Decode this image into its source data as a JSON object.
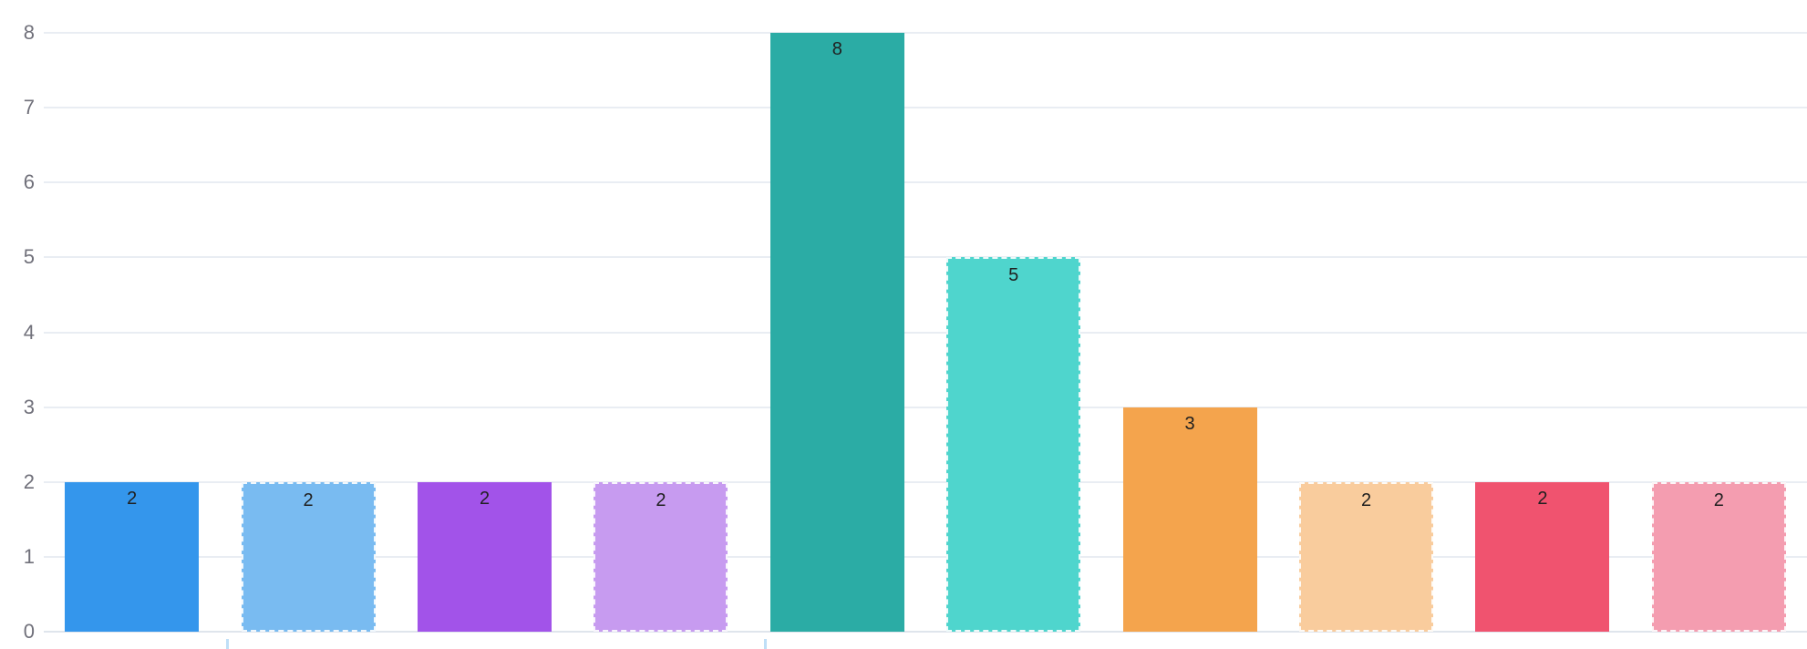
{
  "chart_data": {
    "type": "bar",
    "title": "",
    "xlabel": "",
    "ylabel": "",
    "x_tick_labels_visible": false,
    "values": [
      2,
      2,
      2,
      2,
      8,
      5,
      3,
      2,
      2,
      2
    ],
    "value_labels": [
      "2",
      "2",
      "2",
      "2",
      "8",
      "5",
      "3",
      "2",
      "2",
      "2"
    ],
    "bar_colors": [
      "#3496EC",
      "#79BBF1",
      "#A253E9",
      "#C79BF0",
      "#2BACA5",
      "#4FD5CD",
      "#F4A44D",
      "#F9CC9D",
      "#F0536F",
      "#F49DB0"
    ],
    "bar_border_dashed": [
      false,
      true,
      false,
      true,
      false,
      true,
      false,
      true,
      false,
      true
    ],
    "y_ticks": [
      "0",
      "1",
      "2",
      "3",
      "4",
      "5",
      "6",
      "7",
      "8"
    ],
    "ylim": [
      0,
      8
    ],
    "grid": true,
    "legend_position": "none",
    "x_axis_minor_ticks_percent": [
      12.5,
      42.3
    ]
  },
  "style": {
    "background": "#FFFFFF",
    "grid_color": "#E9EDF3",
    "axis_line_color": "#DFE5EC",
    "y_label_color": "#70707A",
    "value_label_color": "#202020",
    "minor_tick_color": "#BFDFF7",
    "bar_dash_border_color": "rgba(255,255,255,0.9)"
  }
}
